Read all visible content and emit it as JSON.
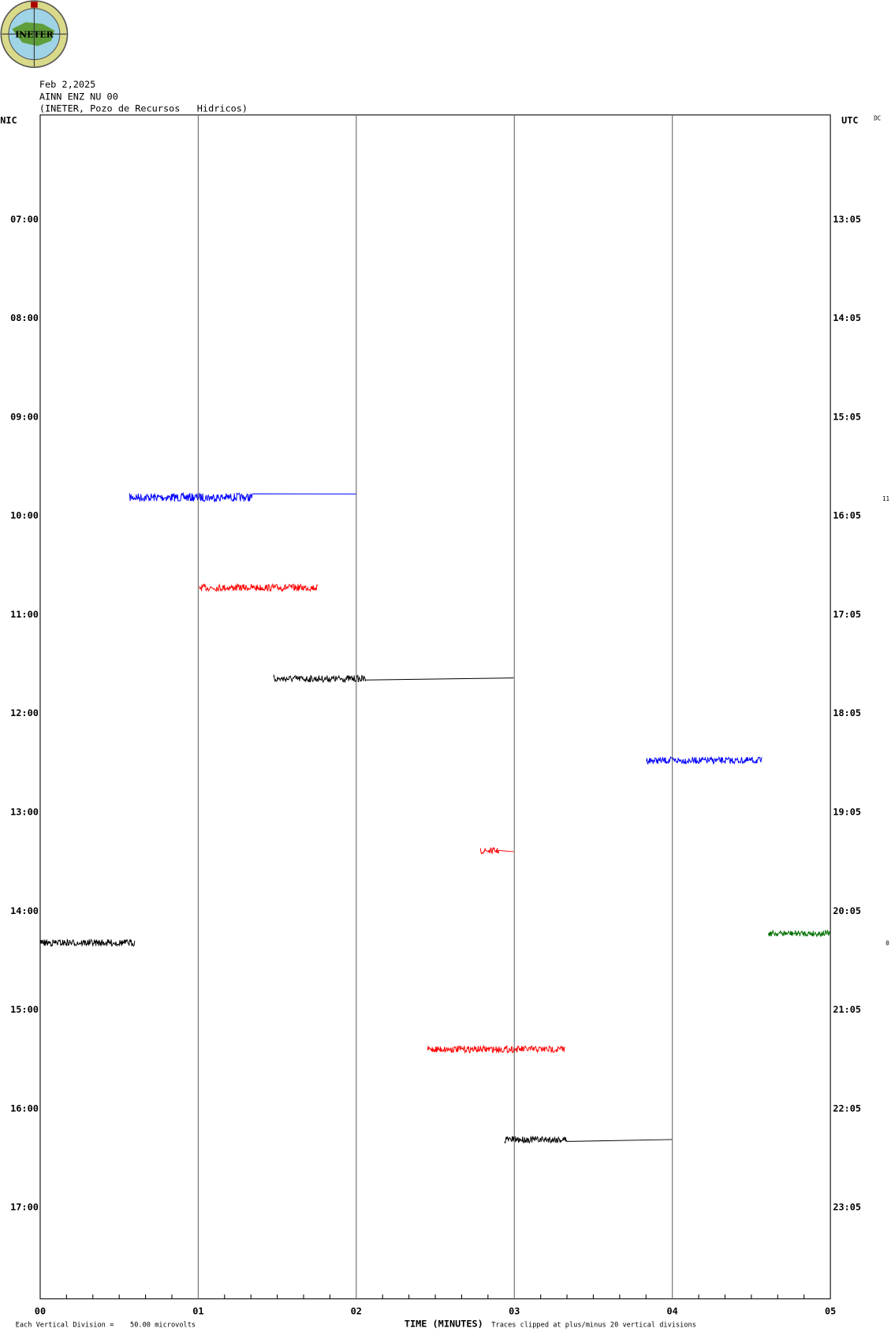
{
  "logo": "INETER",
  "header": {
    "date": "Feb 2,2025",
    "station": "AINN ENZ NU 00",
    "location": "(INETER, Pozo de Recursos   Hidricos)"
  },
  "left_title": "NIC",
  "right_title": "UTC",
  "corner": "DC",
  "left_times": [
    "07:00",
    "08:00",
    "09:00",
    "10:00",
    "11:00",
    "12:00",
    "13:00",
    "14:00",
    "15:00",
    "16:00",
    "17:00"
  ],
  "right_times": [
    "13:05",
    "14:05",
    "15:05",
    "16:05",
    "17:05",
    "18:05",
    "19:05",
    "20:05",
    "21:05",
    "22:05",
    "23:05"
  ],
  "side_marks": [
    "11",
    "0"
  ],
  "x_ticks": [
    "00",
    "01",
    "02",
    "03",
    "04",
    "05"
  ],
  "x_label": "TIME (MINUTES)",
  "footer_left": "Each Vertical Division =    50.00 microvolts",
  "footer_right": "Traces clipped at plus/minus 20 vertical divisions"
}
